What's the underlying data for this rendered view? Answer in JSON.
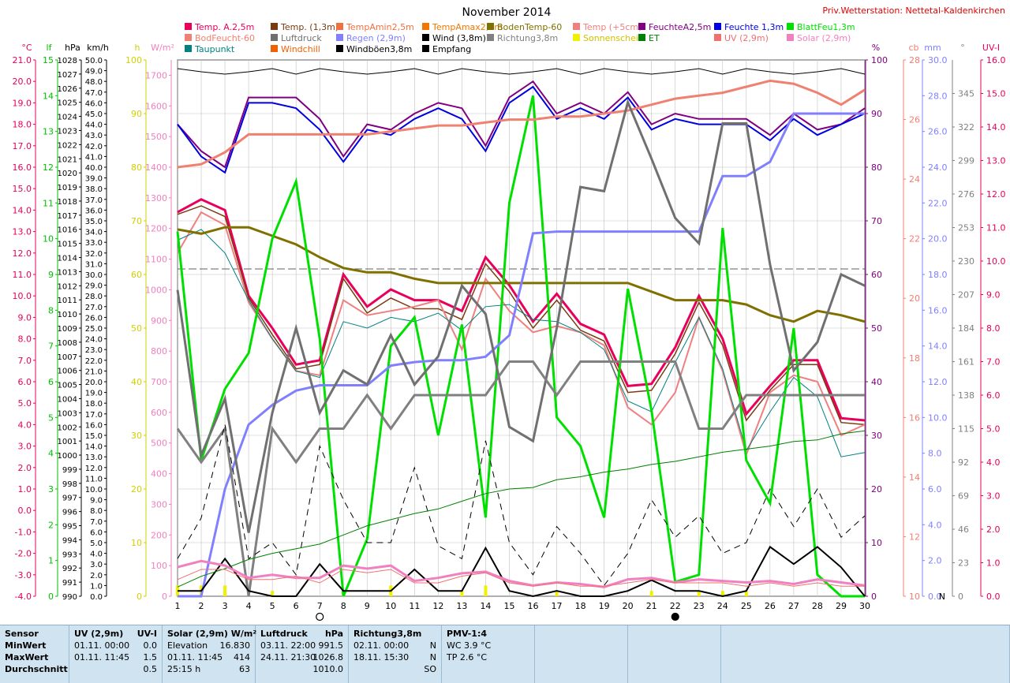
{
  "title": "November 2014",
  "station": "Priv.Wetterstation: Nettetal-Kaldenkirchen",
  "legend": [
    {
      "label": "Temp. A.2,5m",
      "color": "#e8005a"
    },
    {
      "label": "Temp. (1,3m)",
      "color": "#7a3b10"
    },
    {
      "label": "TempAmin2,5m",
      "color": "#f07040"
    },
    {
      "label": "TempAmax2,5m",
      "color": "#f07800"
    },
    {
      "label": "BodenTemp-60",
      "color": "#807000"
    },
    {
      "label": "Temp (+5cm)",
      "color": "#f08080"
    },
    {
      "label": "FeuchteA2,5m",
      "color": "#800080"
    },
    {
      "label": "Feuchte 1,3m",
      "color": "#0000e0"
    },
    {
      "label": "BlattFeu1,3m",
      "color": "#00e000"
    },
    {
      "label": "BodFeucht-60",
      "color": "#f08070"
    },
    {
      "label": "Luftdruck",
      "color": "#707070"
    },
    {
      "label": "Regen (2,9m)",
      "color": "#8080ff"
    },
    {
      "label": "Wind (3,8m)",
      "color": "#000000"
    },
    {
      "label": "Richtung3,8m",
      "color": "#808080"
    },
    {
      "label": "Sonnenschein",
      "color": "#f0f000"
    },
    {
      "label": "ET",
      "color": "#008000"
    },
    {
      "label": "UV (2,9m)",
      "color": "#f07070"
    },
    {
      "label": "Solar (2,9m)",
      "color": "#f080c0"
    },
    {
      "label": "Taupunkt",
      "color": "#008080"
    },
    {
      "label": "Windchill",
      "color": "#f06000"
    },
    {
      "label": "Windböen3,8m",
      "color": "#000000"
    },
    {
      "label": "Empfang",
      "color": "#000000"
    }
  ],
  "left_axes": [
    {
      "unit": "°C",
      "color": "#e8005a",
      "ticks": [
        "21.0",
        "20.0",
        "19.0",
        "18.0",
        "17.0",
        "16.0",
        "15.0",
        "14.0",
        "13.0",
        "12.0",
        "11.0",
        "10.0",
        "9.0",
        "8.0",
        "7.0",
        "6.0",
        "5.0",
        "4.0",
        "3.0",
        "2.0",
        "1.0",
        "0.0",
        "-1.0",
        "-2.0",
        "-3.0",
        "-4.0"
      ]
    },
    {
      "unit": "lf",
      "color": "#00c000",
      "ticks": [
        "15",
        "14",
        "13",
        "12",
        "11",
        "10",
        "9",
        "8",
        "7",
        "6",
        "5",
        "4",
        "3",
        "2",
        "1",
        "0"
      ]
    },
    {
      "unit": "hPa",
      "color": "#000000",
      "ticks": [
        "1028",
        "1027",
        "1026",
        "1025",
        "1024",
        "1023",
        "1022",
        "1021",
        "1020",
        "1019",
        "1018",
        "1017",
        "1016",
        "1015",
        "1014",
        "1013",
        "1012",
        "1011",
        "1010",
        "1009",
        "1008",
        "1007",
        "1006",
        "1005",
        "1004",
        "1003",
        "1002",
        "1001",
        "1000",
        "999",
        "998",
        "997",
        "996",
        "995",
        "994",
        "993",
        "992",
        "991",
        "990"
      ]
    },
    {
      "unit": "km/h",
      "color": "#000000",
      "ticks": [
        "50.0",
        "49.0",
        "48.0",
        "47.0",
        "46.0",
        "45.0",
        "44.0",
        "43.0",
        "42.0",
        "41.0",
        "40.0",
        "39.0",
        "38.0",
        "37.0",
        "36.0",
        "35.0",
        "34.0",
        "33.0",
        "32.0",
        "31.0",
        "30.0",
        "29.0",
        "28.0",
        "27.0",
        "26.0",
        "25.0",
        "24.0",
        "23.0",
        "22.0",
        "21.0",
        "20.0",
        "19.0",
        "18.0",
        "17.0",
        "16.0",
        "15.0",
        "14.0",
        "13.0",
        "12.0",
        "11.0",
        "10.0",
        "9.0",
        "8.0",
        "7.0",
        "6.0",
        "5.0",
        "4.0",
        "3.0",
        "2.0",
        "1.0",
        "0.0"
      ]
    },
    {
      "unit": "h",
      "color": "#d0d000",
      "ticks": [
        "100",
        "90",
        "80",
        "70",
        "60",
        "50",
        "40",
        "30",
        "20",
        "10",
        "0"
      ]
    },
    {
      "unit": "W/m²",
      "color": "#f080c0",
      "ticks": [
        "1700",
        "1600",
        "1500",
        "1400",
        "1300",
        "1200",
        "1100",
        "1000",
        "900",
        "800",
        "700",
        "600",
        "500",
        "400",
        "300",
        "200",
        "100",
        "0"
      ]
    }
  ],
  "right_axes": [
    {
      "unit": "%",
      "color": "#800080",
      "ticks": [
        "100",
        "90",
        "80",
        "70",
        "60",
        "50",
        "40",
        "30",
        "20",
        "10",
        "0"
      ]
    },
    {
      "unit": "cb",
      "color": "#f08070",
      "ticks": [
        "28",
        "26",
        "24",
        "22",
        "20",
        "18",
        "16",
        "14",
        "12",
        "10"
      ]
    },
    {
      "unit": "mm",
      "color": "#8080ff",
      "ticks": [
        "30.0",
        "28.0",
        "26.0",
        "24.0",
        "22.0",
        "20.0",
        "18.0",
        "16.0",
        "14.0",
        "12.0",
        "10.0",
        "8.0",
        "6.0",
        "4.0",
        "2.0",
        "0.0"
      ]
    },
    {
      "unit": "°",
      "color": "#808080",
      "ticks": [
        "345",
        "322",
        "299",
        "276",
        "253",
        "230",
        "207",
        "184",
        "161",
        "138",
        "115",
        "92",
        "69",
        "46",
        "23",
        "0"
      ],
      "zero_label": "N"
    },
    {
      "unit": "UV-I",
      "color": "#e8005a",
      "ticks": [
        "16.0",
        "15.0",
        "14.0",
        "13.0",
        "12.0",
        "11.0",
        "10.0",
        "9.0",
        "8.0",
        "7.0",
        "6.0",
        "5.0",
        "4.0",
        "3.0",
        "2.0",
        "1.0",
        "0.0"
      ]
    }
  ],
  "moon_marks": [
    {
      "day": 7,
      "phase": "full"
    },
    {
      "day": 22,
      "phase": "new"
    }
  ],
  "chart_data": {
    "type": "line",
    "title": "November 2014",
    "x": [
      1,
      2,
      3,
      4,
      5,
      6,
      7,
      8,
      9,
      10,
      11,
      12,
      13,
      14,
      15,
      16,
      17,
      18,
      19,
      20,
      21,
      22,
      23,
      24,
      25,
      26,
      27,
      28,
      29,
      30
    ],
    "xlim": [
      1,
      30
    ],
    "grid": true,
    "series": [
      {
        "name": "Temp. A.2,5m",
        "axis": "°C",
        "color": "#e8005a",
        "width": 3,
        "values": [
          13.9,
          14.5,
          14.0,
          10.0,
          8.5,
          6.8,
          7.0,
          11.0,
          9.5,
          10.3,
          9.8,
          9.8,
          9.3,
          11.8,
          10.5,
          8.8,
          10.1,
          8.7,
          8.2,
          5.8,
          5.9,
          7.6,
          10.0,
          8.0,
          4.5,
          5.8,
          7.0,
          7.0,
          4.3,
          4.2
        ]
      },
      {
        "name": "Temp. (1,3m)",
        "axis": "°C",
        "color": "#7a3b10",
        "width": 1.5,
        "values": [
          13.8,
          14.2,
          13.7,
          9.9,
          8.2,
          6.6,
          6.8,
          10.8,
          9.2,
          9.9,
          9.4,
          9.4,
          8.9,
          11.5,
          10.2,
          8.5,
          9.8,
          8.4,
          7.9,
          5.5,
          5.6,
          7.3,
          9.7,
          7.7,
          4.2,
          5.6,
          6.8,
          6.8,
          4.1,
          4.0
        ]
      },
      {
        "name": "Temp (+5cm)",
        "axis": "°C",
        "color": "#f08080",
        "width": 2,
        "values": [
          12.0,
          13.9,
          13.3,
          9.7,
          8.0,
          6.5,
          6.3,
          9.8,
          9.1,
          9.3,
          9.5,
          9.8,
          7.5,
          10.8,
          9.3,
          8.3,
          8.6,
          8.3,
          7.7,
          4.8,
          4.0,
          5.5,
          9.0,
          6.5,
          2.6,
          5.5,
          6.3,
          6.0,
          3.5,
          4.0
        ]
      },
      {
        "name": "Taupunkt",
        "axis": "°C",
        "color": "#008080",
        "width": 1,
        "values": [
          12.6,
          13.1,
          12.0,
          9.8,
          8.0,
          6.5,
          6.2,
          8.8,
          8.5,
          9.0,
          8.8,
          9.2,
          8.4,
          9.5,
          9.6,
          8.9,
          8.8,
          8.3,
          7.5,
          5.1,
          4.6,
          6.9,
          9.0,
          6.6,
          2.8,
          4.6,
          6.2,
          5.3,
          2.5,
          2.7
        ]
      },
      {
        "name": "BodenTemp-60",
        "axis": "°C",
        "color": "#807000",
        "width": 3,
        "values": [
          13.1,
          12.9,
          13.2,
          13.2,
          12.8,
          12.4,
          11.8,
          11.3,
          11.1,
          11.1,
          10.8,
          10.6,
          10.6,
          10.6,
          10.6,
          10.6,
          10.6,
          10.6,
          10.6,
          10.6,
          10.2,
          9.8,
          9.8,
          9.8,
          9.6,
          9.1,
          8.8,
          9.3,
          9.1,
          8.8
        ]
      },
      {
        "name": "FeuchteA2,5m",
        "axis": "%",
        "color": "#800080",
        "width": 2,
        "values": [
          88,
          83,
          80,
          93,
          93,
          93,
          89,
          82,
          88,
          87,
          90,
          92,
          91,
          84,
          93,
          96,
          90,
          92,
          90,
          94,
          88,
          90,
          89,
          89,
          89,
          86,
          90,
          87,
          88,
          91
        ]
      },
      {
        "name": "Feuchte 1,3m",
        "axis": "%",
        "color": "#0000e0",
        "width": 2,
        "values": [
          88,
          82,
          79,
          92,
          92,
          91,
          87,
          81,
          87,
          86,
          89,
          91,
          89,
          83,
          92,
          95,
          89,
          91,
          89,
          93,
          87,
          89,
          88,
          88,
          88,
          85,
          89,
          86,
          88,
          90
        ]
      },
      {
        "name": "BlattFeu1,3m",
        "axis": "lf",
        "color": "#00e000",
        "width": 3,
        "values": [
          10.2,
          3.8,
          5.8,
          6.8,
          10.0,
          11.6,
          7.2,
          0.0,
          1.6,
          7.0,
          7.8,
          4.5,
          7.6,
          2.2,
          11.0,
          14.0,
          5.0,
          4.2,
          2.2,
          8.6,
          5.2,
          0.4,
          0.6,
          10.3,
          3.8,
          2.6,
          7.5,
          0.6,
          0.0,
          0.0
        ]
      },
      {
        "name": "BodFeucht-60",
        "axis": "cb",
        "color": "#f08070",
        "width": 3,
        "values": [
          24.4,
          24.5,
          24.9,
          25.5,
          25.5,
          25.5,
          25.5,
          25.5,
          25.5,
          25.6,
          25.7,
          25.8,
          25.8,
          25.9,
          26.0,
          26.0,
          26.1,
          26.1,
          26.2,
          26.3,
          26.5,
          26.7,
          26.8,
          26.9,
          27.1,
          27.3,
          27.2,
          26.9,
          26.5,
          27.0
        ]
      },
      {
        "name": "Regen (2,9m)",
        "axis": "mm",
        "color": "#8080ff",
        "width": 3,
        "values": [
          0.0,
          0.0,
          6.0,
          9.6,
          10.7,
          11.5,
          11.8,
          11.8,
          11.8,
          12.9,
          13.1,
          13.2,
          13.2,
          13.4,
          14.6,
          20.3,
          20.4,
          20.4,
          20.4,
          20.4,
          20.4,
          20.4,
          20.4,
          23.5,
          23.5,
          24.3,
          27.0,
          27.0,
          27.0,
          27.0
        ]
      },
      {
        "name": "Luftdruck",
        "axis": "hPa",
        "color": "#707070",
        "width": 3,
        "values": [
          1011.7,
          1000.0,
          1004.0,
          994.5,
          1003.0,
          1009.0,
          1003.0,
          1006.0,
          1005.0,
          1008.5,
          1005.0,
          1007.0,
          1012.0,
          1010.0,
          1002.0,
          1001.0,
          1009.0,
          1019.0,
          1018.7,
          1025.0,
          1021.0,
          1016.8,
          1015.0,
          1023.5,
          1023.5,
          1013.5,
          1006.0,
          1008.0,
          1012.8,
          1012.0
        ]
      },
      {
        "name": "Richtung3,8m",
        "axis": "°",
        "color": "#808080",
        "width": 3,
        "values": [
          115,
          92,
          115,
          0,
          115,
          92,
          115,
          115,
          138,
          115,
          138,
          138,
          138,
          138,
          161,
          161,
          138,
          161,
          161,
          161,
          161,
          161,
          115,
          115,
          138,
          138,
          138,
          138,
          138,
          138
        ]
      },
      {
        "name": "Wind (3,8m)",
        "axis": "km/h",
        "color": "#000000",
        "width": 2,
        "values": [
          0.5,
          0.5,
          3.5,
          0.5,
          0.0,
          0.0,
          3.0,
          0.5,
          0.5,
          0.5,
          2.5,
          0.5,
          0.5,
          4.5,
          0.5,
          0.0,
          0.5,
          0.0,
          0.0,
          0.5,
          1.5,
          0.5,
          0.5,
          0.0,
          0.5,
          4.6,
          3.0,
          4.6,
          2.7,
          0.0
        ]
      },
      {
        "name": "Windböen3,8m",
        "axis": "km/h",
        "color": "#000000",
        "width": 1,
        "dash": true,
        "values": [
          3.5,
          7.3,
          16.0,
          3.5,
          5.0,
          2.0,
          14.0,
          9.0,
          5.0,
          5.0,
          12.0,
          4.7,
          3.5,
          14.5,
          5.0,
          2.0,
          6.5,
          4.0,
          1.0,
          4.0,
          9.0,
          5.5,
          7.5,
          4.0,
          5.0,
          10.0,
          6.5,
          10.0,
          5.5,
          7.5
        ]
      },
      {
        "name": "ET",
        "axis": "W/m²",
        "color": "#008000",
        "width": 1,
        "values": [
          30,
          65,
          90,
          120,
          140,
          155,
          170,
          200,
          230,
          250,
          270,
          285,
          310,
          335,
          350,
          355,
          380,
          390,
          405,
          415,
          430,
          440,
          455,
          470,
          480,
          490,
          505,
          510,
          530,
          540
        ]
      },
      {
        "name": "Solar (2,9m)",
        "axis": "W/m²",
        "color": "#f080c0",
        "width": 3,
        "values": [
          95,
          115,
          100,
          60,
          70,
          60,
          60,
          100,
          90,
          100,
          50,
          60,
          75,
          80,
          50,
          35,
          45,
          40,
          30,
          55,
          60,
          45,
          55,
          50,
          45,
          50,
          40,
          55,
          45,
          35
        ]
      },
      {
        "name": "UV (2,9m)",
        "axis": "UV-I",
        "color": "#f07070",
        "width": 1,
        "values": [
          0.5,
          0.8,
          0.8,
          0.5,
          0.5,
          0.6,
          0.4,
          0.8,
          0.7,
          0.8,
          0.4,
          0.4,
          0.6,
          0.7,
          0.4,
          0.3,
          0.4,
          0.3,
          0.3,
          0.4,
          0.5,
          0.4,
          0.4,
          0.4,
          0.3,
          0.4,
          0.3,
          0.4,
          0.3,
          0.3
        ]
      }
    ],
    "bars": {
      "name": "Sonnenschein",
      "axis": "h",
      "color": "#f0f000",
      "values": [
        2,
        2,
        2,
        0,
        1,
        0,
        0,
        1,
        0,
        2,
        0,
        0,
        1,
        2,
        0,
        0,
        1,
        0,
        0,
        0,
        1,
        0,
        1,
        1,
        1,
        0,
        0,
        0,
        0,
        0
      ]
    }
  },
  "footer": {
    "cols": [
      {
        "header": [
          "Sensor"
        ],
        "rows": [
          [
            "MinWert"
          ],
          [
            "MaxWert"
          ],
          [
            "Durchschnitt"
          ]
        ]
      },
      {
        "header": [
          "UV (2,9m)",
          "UV-I"
        ],
        "rows": [
          [
            "01.11.  00:00",
            "0.0"
          ],
          [
            "01.11.  11:45",
            "1.5"
          ],
          [
            "",
            "0.5"
          ]
        ]
      },
      {
        "header": [
          "Solar (2,9m) W/m²",
          ""
        ],
        "rows": [
          [
            "Elevation",
            "16.830"
          ],
          [
            "01.11.  11:45",
            "414"
          ],
          [
            "25:15 h",
            "63"
          ]
        ]
      },
      {
        "header": [
          "Luftdruck",
          "hPa"
        ],
        "rows": [
          [
            "03.11.  22:00",
            "991.5"
          ],
          [
            "24.11.  21:30",
            "1026.8"
          ],
          [
            "",
            "1010.0"
          ]
        ]
      },
      {
        "header": [
          "Richtung3,8m",
          ""
        ],
        "rows": [
          [
            "02.11.  00:00",
            "N"
          ],
          [
            "18.11.  15:30",
            "N"
          ],
          [
            "",
            "SO"
          ]
        ]
      },
      {
        "header": [
          "PMV-1:4",
          ""
        ],
        "rows": [
          [
            "WC 3.9 °C",
            ""
          ],
          [
            "TP 2.6 °C",
            ""
          ],
          [
            "",
            ""
          ]
        ]
      }
    ]
  }
}
